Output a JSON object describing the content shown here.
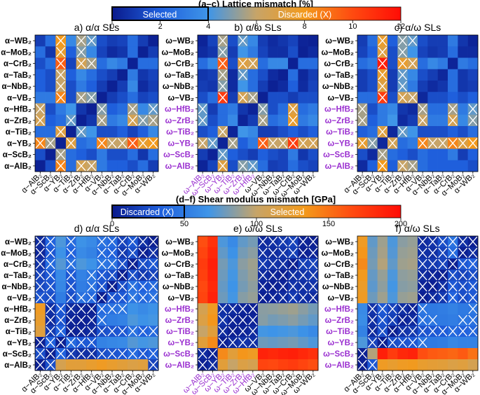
{
  "colors": {
    "gradient": [
      "#0a1a8c",
      "#1f5fdc",
      "#3f95e8",
      "#c7a468",
      "#f39a1c",
      "#ff4a10",
      "#ff0c06"
    ],
    "cross": "#ffffff",
    "black": "#000000",
    "purple": "#9a2fd0"
  },
  "top_colorbar": {
    "title": "(a–c) Lattice mismatch [%]",
    "left_label": "Selected",
    "right_label": "Discarded (X)",
    "ticks": [
      "0",
      "2",
      "4",
      "6",
      "8",
      "10",
      "12"
    ],
    "min": 0,
    "max": 12,
    "threshold": 4
  },
  "bottom_colorbar": {
    "title": "(d–f) Shear modulus mismatch [GPa]",
    "left_label": "Discarded (X)",
    "right_label": "Selected",
    "ticks": [
      "0",
      "50",
      "100",
      "150",
      "200"
    ],
    "min": 0,
    "max": 200,
    "threshold": 50
  },
  "labels": {
    "alpha_rows": [
      "α−WB₂",
      "α−MoB₂",
      "α−CrB₂",
      "α−TaB₂",
      "α−NbB₂",
      "α−VB₂",
      "α−HfB₂",
      "α−ZrB₂",
      "α−TiB₂",
      "α−YB₂",
      "α−ScB₂",
      "α−AlB₂"
    ],
    "omega_rows": [
      "ω−WB₂",
      "ω−MoB₂",
      "ω−CrB₂",
      "ω−TaB₂",
      "ω−NbB₂",
      "ω−VB₂",
      "ω−HfB₂",
      "ω−ZrB₂",
      "ω−TiB₂",
      "ω−YB₂",
      "ω−ScB₂",
      "ω−AlB₂"
    ],
    "alpha_cols": [
      "α−AlB₂",
      "α−ScB₂",
      "α−YB₂",
      "α−TiB₂",
      "α−ZrB₂",
      "α−HfB₂",
      "α−VB₂",
      "α−NbB₂",
      "α−TaB₂",
      "α−CrB₂",
      "α−MoB₂",
      "α−WB₂"
    ],
    "omega_cols": [
      "ω−AlB₂",
      "ω−ScB₂",
      "ω−YB₂",
      "ω−TiB₂",
      "ω−ZrB₂",
      "ω−HfB₂",
      "ω−VB₂",
      "ω−NbB₂",
      "ω−TaB₂",
      "ω−CrB₂",
      "ω−MoB₂",
      "ω−WB₂"
    ]
  },
  "chart_data": [
    {
      "id": "a",
      "type": "heatmap",
      "title": "a) α/α SLs",
      "rows": "alpha_rows",
      "cols": "alpha_cols",
      "purple_from": 12,
      "max": 12,
      "threshold": 4,
      "discard": "above",
      "values": [
        [
          1.0,
          2.5,
          8.0,
          3.5,
          5.5,
          4.5,
          1.5,
          1.0,
          1.2,
          2.5,
          1.0,
          0.2
        ],
        [
          2.5,
          0.8,
          7.5,
          2.0,
          5.0,
          3.5,
          1.2,
          0.5,
          0.8,
          2.5,
          0.2,
          1.0
        ],
        [
          1.5,
          2.5,
          9.5,
          1.2,
          6.5,
          5.5,
          2.5,
          3.5,
          3.0,
          0.2,
          2.5,
          2.5
        ],
        [
          2.0,
          1.5,
          6.0,
          2.0,
          3.5,
          2.5,
          1.5,
          1.0,
          0.2,
          3.0,
          0.8,
          1.2
        ],
        [
          2.0,
          1.5,
          6.0,
          1.5,
          3.0,
          2.0,
          1.0,
          0.2,
          1.0,
          3.5,
          0.5,
          1.0
        ],
        [
          3.0,
          3.0,
          8.5,
          1.5,
          5.5,
          5.0,
          0.2,
          1.0,
          1.5,
          2.5,
          1.2,
          1.5
        ],
        [
          6.0,
          1.5,
          3.0,
          4.0,
          0.8,
          0.2,
          5.0,
          2.0,
          2.5,
          5.5,
          3.5,
          4.5
        ],
        [
          6.5,
          2.0,
          2.5,
          4.5,
          0.2,
          0.8,
          5.5,
          3.0,
          3.5,
          6.5,
          5.0,
          5.5
        ],
        [
          2.5,
          2.5,
          7.0,
          0.2,
          4.5,
          4.0,
          1.5,
          1.5,
          2.0,
          1.2,
          2.0,
          3.5
        ],
        [
          8.5,
          5.5,
          0.2,
          7.0,
          2.5,
          3.0,
          8.5,
          6.0,
          6.0,
          9.5,
          7.5,
          8.0
        ],
        [
          1.5,
          0.2,
          5.5,
          2.5,
          2.0,
          1.5,
          3.0,
          1.5,
          1.5,
          2.5,
          0.8,
          2.5
        ],
        [
          0.2,
          1.5,
          8.5,
          2.5,
          6.5,
          6.0,
          3.0,
          2.0,
          2.0,
          1.5,
          2.5,
          1.0
        ]
      ]
    },
    {
      "id": "b",
      "type": "heatmap",
      "title": "b) α/ω SLs",
      "rows": "omega_rows",
      "cols": "omega_cols",
      "purple_from": 6,
      "max": 12,
      "threshold": 4,
      "discard": "above",
      "values": [
        [
          0.3,
          1.2,
          5.5,
          1.5,
          4.5,
          3.5,
          1.0,
          0.5,
          0.8,
          1.2,
          0.3,
          0.2
        ],
        [
          0.5,
          0.8,
          5.0,
          1.0,
          4.0,
          3.0,
          1.2,
          0.6,
          0.6,
          1.5,
          0.2,
          0.5
        ],
        [
          2.5,
          3.5,
          9.5,
          1.5,
          7.0,
          6.5,
          2.5,
          3.5,
          3.5,
          0.2,
          2.5,
          2.5
        ],
        [
          0.8,
          1.0,
          5.5,
          0.5,
          4.5,
          2.5,
          1.5,
          0.5,
          0.2,
          2.5,
          0.4,
          1.0
        ],
        [
          1.0,
          0.8,
          5.0,
          0.5,
          4.0,
          2.5,
          1.0,
          0.2,
          0.5,
          2.0,
          0.5,
          1.2
        ],
        [
          1.5,
          2.5,
          10.5,
          1.0,
          6.5,
          5.5,
          0.2,
          1.5,
          1.5,
          1.0,
          1.5,
          1.5
        ],
        [
          4.5,
          1.0,
          2.5,
          3.0,
          0.8,
          0.3,
          5.0,
          1.5,
          2.5,
          7.0,
          2.5,
          3.0
        ],
        [
          4.5,
          1.5,
          2.5,
          3.5,
          0.3,
          1.0,
          5.5,
          2.5,
          3.0,
          7.5,
          3.0,
          3.5
        ],
        [
          1.5,
          2.0,
          6.0,
          0.3,
          4.0,
          3.5,
          1.0,
          1.0,
          1.5,
          2.0,
          1.5,
          2.0
        ],
        [
          6.0,
          4.5,
          0.3,
          5.5,
          2.0,
          3.0,
          9.5,
          6.0,
          6.0,
          10.5,
          6.5,
          6.5
        ],
        [
          1.0,
          0.3,
          4.5,
          2.0,
          1.5,
          1.0,
          2.0,
          1.5,
          1.2,
          3.0,
          0.8,
          1.5
        ],
        [
          0.3,
          1.2,
          7.0,
          1.5,
          5.0,
          4.5,
          2.5,
          1.0,
          1.2,
          2.5,
          1.5,
          1.2
        ]
      ]
    },
    {
      "id": "c",
      "type": "heatmap",
      "title": "c) α/ω SLs",
      "rows": "omega_rows",
      "cols": "alpha_cols",
      "purple_from": 6,
      "max": 12,
      "threshold": 4,
      "discard": "above",
      "values": [
        [
          1.0,
          2.5,
          7.5,
          2.0,
          5.0,
          4.5,
          1.5,
          1.0,
          1.0,
          3.0,
          0.8,
          0.3
        ],
        [
          1.2,
          2.0,
          7.0,
          1.5,
          5.0,
          4.0,
          1.2,
          0.8,
          1.0,
          2.5,
          0.5,
          0.5
        ],
        [
          2.5,
          3.0,
          11.5,
          1.5,
          7.5,
          6.5,
          2.5,
          3.5,
          3.0,
          0.3,
          3.0,
          2.5
        ],
        [
          1.0,
          1.5,
          7.5,
          1.0,
          4.5,
          3.5,
          1.5,
          1.0,
          0.4,
          2.5,
          0.8,
          1.2
        ],
        [
          1.0,
          1.5,
          7.0,
          1.0,
          4.5,
          3.0,
          1.0,
          0.5,
          0.8,
          2.5,
          0.8,
          1.0
        ],
        [
          2.5,
          2.5,
          10.5,
          1.5,
          6.5,
          6.0,
          0.4,
          1.5,
          1.5,
          2.0,
          1.5,
          2.0
        ],
        [
          5.5,
          1.5,
          3.0,
          3.5,
          0.8,
          0.5,
          5.5,
          2.5,
          2.5,
          5.5,
          3.0,
          4.5
        ],
        [
          5.5,
          2.0,
          3.0,
          4.0,
          0.5,
          1.0,
          6.0,
          3.0,
          3.0,
          6.5,
          3.5,
          5.0
        ],
        [
          2.0,
          2.5,
          7.0,
          0.4,
          4.5,
          4.0,
          1.5,
          1.5,
          1.5,
          2.0,
          1.5,
          2.5
        ],
        [
          7.5,
          5.0,
          0.4,
          6.5,
          2.5,
          3.0,
          8.5,
          6.0,
          6.0,
          8.5,
          7.0,
          8.0
        ],
        [
          1.5,
          0.5,
          5.5,
          2.5,
          2.0,
          1.5,
          2.5,
          2.0,
          2.0,
          3.0,
          1.0,
          2.0
        ],
        [
          0.5,
          2.0,
          8.0,
          2.0,
          6.0,
          5.5,
          2.5,
          2.0,
          2.0,
          2.0,
          2.0,
          1.5
        ]
      ]
    },
    {
      "id": "d",
      "type": "heatmap",
      "title": "d) α/α SLs",
      "rows": "alpha_rows",
      "cols": "alpha_cols",
      "purple_from": 12,
      "max": 200,
      "threshold": 50,
      "discard": "below",
      "values": [
        [
          8,
          35,
          70,
          40,
          65,
          60,
          45,
          40,
          20,
          30,
          10,
          3
        ],
        [
          6,
          30,
          65,
          35,
          60,
          55,
          40,
          35,
          15,
          25,
          3,
          10
        ],
        [
          12,
          40,
          72,
          45,
          70,
          65,
          48,
          45,
          25,
          3,
          25,
          30
        ],
        [
          20,
          30,
          60,
          30,
          55,
          48,
          30,
          25,
          3,
          25,
          15,
          20
        ],
        [
          22,
          28,
          58,
          28,
          52,
          46,
          28,
          3,
          25,
          45,
          35,
          40
        ],
        [
          28,
          25,
          52,
          25,
          45,
          40,
          3,
          28,
          30,
          48,
          40,
          45
        ],
        [
          130,
          10,
          30,
          8,
          5,
          3,
          40,
          45,
          48,
          65,
          60,
          65
        ],
        [
          125,
          8,
          28,
          5,
          3,
          5,
          45,
          52,
          55,
          70,
          65,
          68
        ],
        [
          118,
          15,
          35,
          3,
          5,
          8,
          25,
          28,
          30,
          45,
          35,
          40
        ],
        [
          3,
          35,
          3,
          40,
          30,
          30,
          55,
          58,
          60,
          72,
          68,
          70
        ],
        [
          25,
          3,
          35,
          15,
          10,
          10,
          25,
          28,
          30,
          40,
          30,
          35
        ],
        [
          3,
          25,
          110,
          120,
          120,
          125,
          130,
          125,
          120,
          115,
          118,
          20
        ]
      ]
    },
    {
      "id": "e",
      "type": "heatmap",
      "title": "e) ω/ω SLs",
      "rows": "omega_rows",
      "cols": "omega_cols",
      "purple_from": 6,
      "max": 200,
      "threshold": 50,
      "discard": "below",
      "values": [
        [
          165,
          180,
          70,
          60,
          75,
          80,
          8,
          10,
          15,
          20,
          5,
          3
        ],
        [
          170,
          185,
          75,
          65,
          80,
          85,
          10,
          8,
          12,
          18,
          3,
          5
        ],
        [
          175,
          190,
          80,
          70,
          85,
          90,
          15,
          12,
          10,
          3,
          18,
          20
        ],
        [
          172,
          188,
          78,
          68,
          82,
          88,
          8,
          5,
          3,
          10,
          12,
          15
        ],
        [
          168,
          185,
          76,
          66,
          80,
          86,
          5,
          3,
          5,
          12,
          10,
          12
        ],
        [
          170,
          188,
          78,
          68,
          84,
          88,
          3,
          5,
          8,
          15,
          10,
          8
        ],
        [
          110,
          130,
          10,
          8,
          5,
          3,
          85,
          86,
          88,
          90,
          85,
          80
        ],
        [
          115,
          135,
          12,
          5,
          3,
          5,
          84,
          80,
          82,
          85,
          80,
          75
        ],
        [
          100,
          120,
          8,
          3,
          5,
          8,
          68,
          66,
          68,
          70,
          65,
          60
        ],
        [
          120,
          140,
          3,
          8,
          12,
          10,
          78,
          76,
          78,
          80,
          75,
          70
        ],
        [
          8,
          3,
          140,
          120,
          135,
          130,
          188,
          185,
          188,
          190,
          185,
          180
        ],
        [
          3,
          8,
          120,
          100,
          115,
          110,
          170,
          168,
          172,
          175,
          170,
          165
        ]
      ]
    },
    {
      "id": "f",
      "type": "heatmap",
      "title": "f) α/ω SLs",
      "rows": "omega_rows",
      "cols": "alpha_cols",
      "purple_from": 6,
      "max": 200,
      "threshold": 50,
      "discard": "below",
      "values": [
        [
          130,
          75,
          90,
          70,
          85,
          88,
          8,
          12,
          25,
          45,
          10,
          3
        ],
        [
          135,
          78,
          92,
          72,
          88,
          90,
          10,
          10,
          20,
          40,
          3,
          8
        ],
        [
          140,
          80,
          95,
          75,
          90,
          92,
          15,
          15,
          20,
          3,
          30,
          35
        ],
        [
          132,
          76,
          88,
          70,
          86,
          88,
          8,
          5,
          3,
          25,
          20,
          25
        ],
        [
          128,
          74,
          86,
          68,
          84,
          86,
          5,
          3,
          10,
          30,
          25,
          30
        ],
        [
          130,
          78,
          90,
          70,
          88,
          90,
          3,
          8,
          15,
          35,
          25,
          30
        ],
        [
          60,
          12,
          30,
          20,
          10,
          5,
          48,
          50,
          52,
          55,
          50,
          48
        ],
        [
          62,
          10,
          28,
          18,
          5,
          8,
          45,
          48,
          50,
          52,
          48,
          45
        ],
        [
          55,
          8,
          25,
          3,
          12,
          15,
          28,
          30,
          32,
          40,
          35,
          38
        ],
        [
          70,
          20,
          3,
          25,
          28,
          30,
          48,
          50,
          52,
          58,
          55,
          55
        ],
        [
          3,
          95,
          190,
          175,
          185,
          188,
          165,
          160,
          158,
          155,
          160,
          150
        ],
        [
          3,
          30,
          130,
          125,
          130,
          132,
          125,
          122,
          120,
          115,
          118,
          110
        ]
      ]
    }
  ]
}
